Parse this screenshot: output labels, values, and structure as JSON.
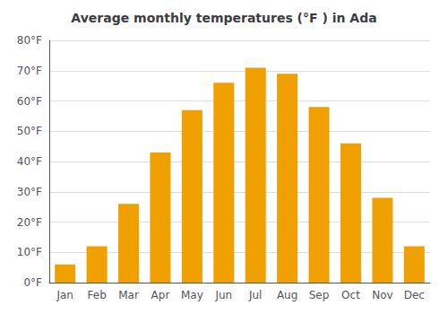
{
  "chart_data": {
    "type": "bar",
    "title": "Average monthly temperatures (°F ) in Ada",
    "categories": [
      "Jan",
      "Feb",
      "Mar",
      "Apr",
      "May",
      "Jun",
      "Jul",
      "Aug",
      "Sep",
      "Oct",
      "Nov",
      "Dec"
    ],
    "values": [
      6,
      12,
      26,
      43,
      57,
      66,
      71,
      69,
      58,
      46,
      28,
      12
    ],
    "color": "#F0A000",
    "ylim": [
      0,
      80
    ],
    "yticks": [
      {
        "value": 0,
        "label": "0°F"
      },
      {
        "value": 10,
        "label": "10°F"
      },
      {
        "value": 20,
        "label": "20°F"
      },
      {
        "value": 30,
        "label": "30°F"
      },
      {
        "value": 40,
        "label": "40°F"
      },
      {
        "value": 50,
        "label": "50°F"
      },
      {
        "value": 60,
        "label": "60°F"
      },
      {
        "value": 70,
        "label": "70°F"
      },
      {
        "value": 80,
        "label": "80°F"
      }
    ],
    "grid": true
  }
}
